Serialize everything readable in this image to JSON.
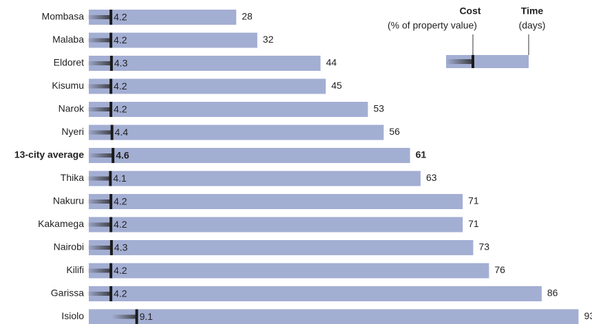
{
  "chart_data": {
    "type": "bar",
    "categories": [
      "Mombasa",
      "Malaba",
      "Eldoret",
      "Kisumu",
      "Narok",
      "Nyeri",
      "13-city average",
      "Thika",
      "Nakuru",
      "Kakamega",
      "Nairobi",
      "Kilifi",
      "Garissa",
      "Isiolo"
    ],
    "highlight_index": 6,
    "series": [
      {
        "name": "Time",
        "unit": "(days)",
        "color": "#a3aed3",
        "label_color": "#1f5c99",
        "values": [
          28,
          32,
          44,
          45,
          53,
          56,
          61,
          63,
          71,
          71,
          73,
          76,
          86,
          93
        ]
      },
      {
        "name": "Cost",
        "unit": "(% of property value)",
        "color": "#1a1a1a",
        "label_color": "#333333",
        "values": [
          4.2,
          4.2,
          4.3,
          4.2,
          4.2,
          4.4,
          4.6,
          4.1,
          4.2,
          4.2,
          4.3,
          4.2,
          4.2,
          9.1
        ]
      }
    ]
  }
}
